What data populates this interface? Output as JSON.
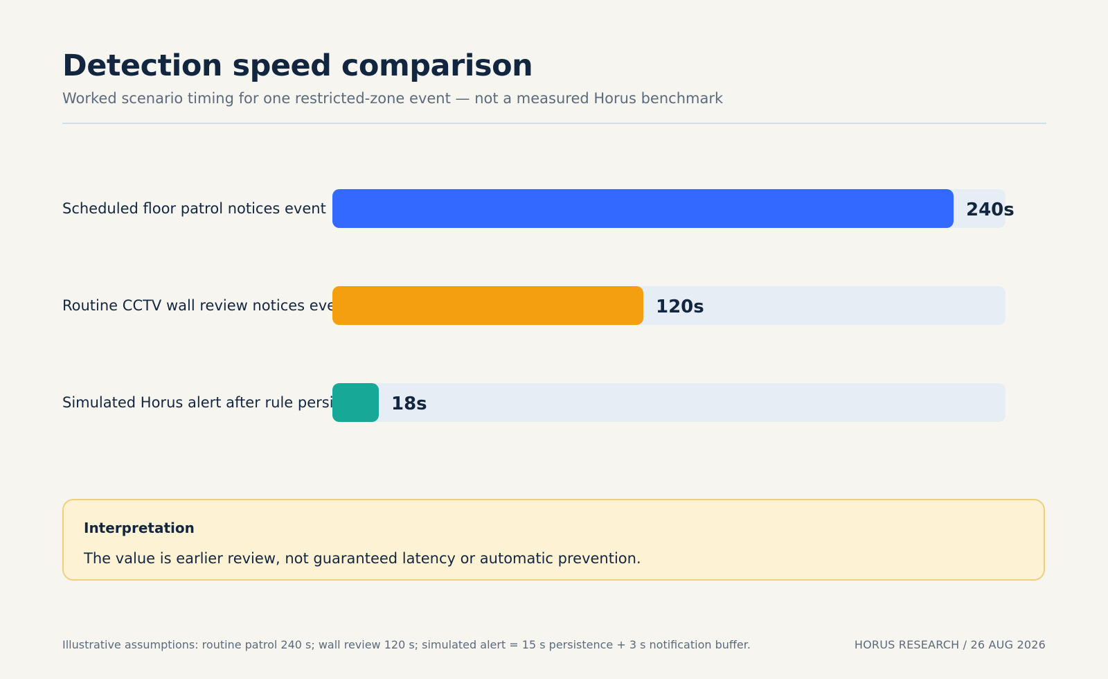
{
  "header": {
    "title": "Detection speed comparison",
    "subtitle": "Worked scenario timing for one restricted-zone event — not a measured Horus benchmark"
  },
  "chart_data": {
    "type": "bar",
    "orientation": "horizontal",
    "categories": [
      "Scheduled floor patrol notices event",
      "Routine CCTV wall review notices event",
      "Simulated Horus alert after rule persists"
    ],
    "values": [
      240,
      120,
      18
    ],
    "value_labels": [
      "240s",
      "120s",
      "18s"
    ],
    "unit": "s",
    "xlim": [
      0,
      260
    ],
    "colors": [
      "#3369ff",
      "#f39f10",
      "#17a898"
    ],
    "track_color": "#e7edf5",
    "grid": false
  },
  "callout": {
    "title": "Interpretation",
    "body": "The value is earlier review, not guaranteed latency or automatic prevention."
  },
  "footer": {
    "note": "Illustrative assumptions: routine patrol 240 s; wall review 120 s; simulated alert = 15 s persistence + 3 s notification buffer.",
    "credit": "HORUS RESEARCH / 26 AUG 2026"
  }
}
